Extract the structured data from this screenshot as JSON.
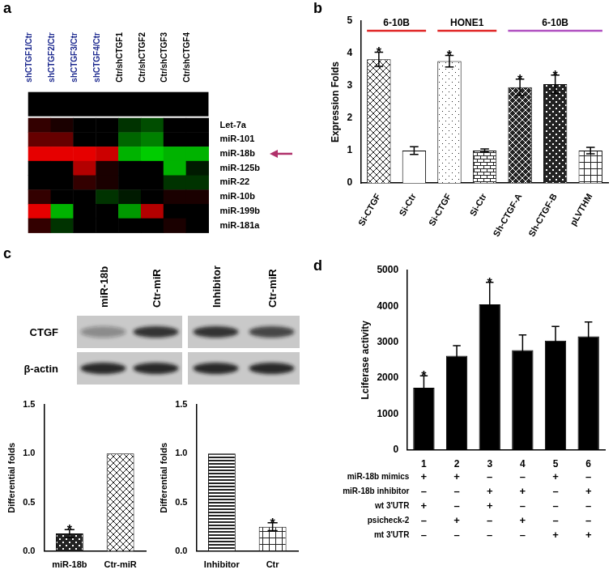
{
  "chart_data": [
    {
      "panel": "a",
      "type": "heatmap",
      "columns": [
        "shCTGF1/Ctr",
        "shCTGF2/Ctr",
        "shCTGF3/Ctr",
        "shCTGF4/Ctr",
        "Ctr/shCTGF1",
        "Ctr/shCTGF2",
        "Ctr/shCTGF3",
        "Ctr/shCTGF4"
      ],
      "rows": [
        "Let-7a",
        "miR-101",
        "miR-18b",
        "miR-125b",
        "miR-22",
        "miR-10b",
        "miR-199b",
        "miR-181a"
      ],
      "cells": [
        [
          0.2,
          0.1,
          0,
          0,
          -0.2,
          -0.3,
          0,
          0
        ],
        [
          0.4,
          0.4,
          0,
          0,
          -0.4,
          -0.5,
          0,
          0
        ],
        [
          0.9,
          0.9,
          0.9,
          0.8,
          -0.7,
          -0.8,
          -0.7,
          -0.7
        ],
        [
          0,
          0,
          0.7,
          0.1,
          0,
          0,
          -0.7,
          -0.1
        ],
        [
          0,
          0,
          0.2,
          0.1,
          0,
          0,
          -0.2,
          -0.2
        ],
        [
          0.2,
          0,
          0,
          -0.2,
          -0.1,
          0,
          0.1,
          0.1
        ],
        [
          0.9,
          -0.7,
          0,
          0,
          -0.6,
          0.7,
          0,
          0
        ],
        [
          0.2,
          -0.2,
          0,
          0,
          0,
          0,
          0.1,
          0
        ]
      ],
      "zlim": [
        -1,
        1
      ],
      "annotations": [
        {
          "type": "arrow",
          "target": "miR-18b",
          "color": "#b0306a"
        }
      ]
    },
    {
      "panel": "b",
      "type": "bar",
      "categories": [
        "Si-CTGF",
        "Si-Ctr",
        "Si-CTGF",
        "Si-Ctr",
        "Sh-CTGF-A",
        "Sh-CTGF-B",
        "pLVTHM"
      ],
      "values": [
        3.82,
        1.0,
        3.76,
        1.0,
        2.96,
        3.05,
        1.0
      ],
      "errors": [
        0.22,
        0.12,
        0.18,
        0.05,
        0.25,
        0.28,
        0.1
      ],
      "annotations": [
        "*",
        null,
        "*",
        null,
        "*",
        "*",
        null
      ],
      "groups": [
        {
          "label": "6-10B",
          "span": [
            0,
            1
          ],
          "color": "#e02424"
        },
        {
          "label": "HONE1",
          "span": [
            2,
            3
          ],
          "color": "#e02424"
        },
        {
          "label": "6-10B",
          "span": [
            4,
            6
          ],
          "color": "#b04fc0"
        }
      ],
      "y_label": "Expression Folds",
      "ylim": [
        0,
        5
      ],
      "yticks": [
        0,
        1,
        2,
        3,
        4,
        5
      ],
      "grid": false,
      "color": "#222222"
    },
    {
      "type": "bar",
      "categories": [
        "miR-18b",
        "Ctr-miR"
      ],
      "values": [
        0.18,
        1.0
      ],
      "errors": [
        0.04,
        null
      ],
      "annotations": [
        "*",
        null
      ],
      "y_label": "Differential folds",
      "ylim": [
        0,
        1.5
      ],
      "yticks": [
        {
          "value": 0,
          "label": "0.0"
        },
        {
          "value": 0.5,
          "label": "0.5"
        },
        {
          "value": 1,
          "label": "1.0"
        },
        {
          "value": 1.5,
          "label": "1.5"
        }
      ],
      "grid": false,
      "color": "#222222"
    },
    {
      "type": "bar",
      "categories": [
        "Inhibitor",
        "Ctr"
      ],
      "values": [
        1.0,
        0.25
      ],
      "errors": [
        null,
        0.04
      ],
      "annotations": [
        null,
        "*"
      ],
      "y_label": "Differential folds",
      "ylim": [
        0,
        1.5
      ],
      "yticks": [
        {
          "value": 0,
          "label": "0.0"
        },
        {
          "value": 0.5,
          "label": "0.5"
        },
        {
          "value": 1,
          "label": "1.0"
        },
        {
          "value": 1.5,
          "label": "1.5"
        }
      ],
      "grid": false,
      "color": "#222222"
    },
    {
      "panel": "d",
      "type": "bar",
      "categories": [
        "1",
        "2",
        "3",
        "4",
        "5",
        "6"
      ],
      "values": [
        1730,
        2620,
        4050,
        2780,
        3040,
        3160
      ],
      "errors": [
        330,
        280,
        620,
        420,
        400,
        400
      ],
      "annotations": [
        "*",
        null,
        "*",
        null,
        null,
        null
      ],
      "y_label": "Lciferase activity",
      "ylim": [
        0,
        5000
      ],
      "yticks": [
        0,
        1000,
        2000,
        3000,
        4000,
        5000
      ],
      "grid": false,
      "color": "#000000",
      "table": {
        "rows": [
          {
            "label": "miR-18b mimics",
            "marks": [
              "+",
              "+",
              "–",
              "–",
              "+",
              "–"
            ]
          },
          {
            "label": "miR-18b inhibitor",
            "marks": [
              "–",
              "–",
              "+",
              "+",
              "–",
              "+"
            ]
          },
          {
            "label": "wt 3'UTR",
            "marks": [
              "+",
              "–",
              "+",
              "–",
              "–",
              "–"
            ]
          },
          {
            "label": "psicheck-2",
            "marks": [
              "–",
              "+",
              "–",
              "+",
              "–",
              "–"
            ]
          },
          {
            "label": "mt 3'UTR",
            "marks": [
              "–",
              "–",
              "–",
              "–",
              "+",
              "+"
            ]
          }
        ]
      }
    }
  ],
  "blot": {
    "panel": "c",
    "lanes": [
      "miR-18b",
      "Ctr-miR",
      "Inhibitor",
      "Ctr-miR"
    ],
    "rows": [
      {
        "label": "CTGF",
        "intensity": [
          0.35,
          0.85,
          0.85,
          0.75
        ]
      },
      {
        "label": "β-actin",
        "intensity": [
          0.9,
          0.9,
          0.9,
          0.9
        ]
      }
    ]
  }
}
